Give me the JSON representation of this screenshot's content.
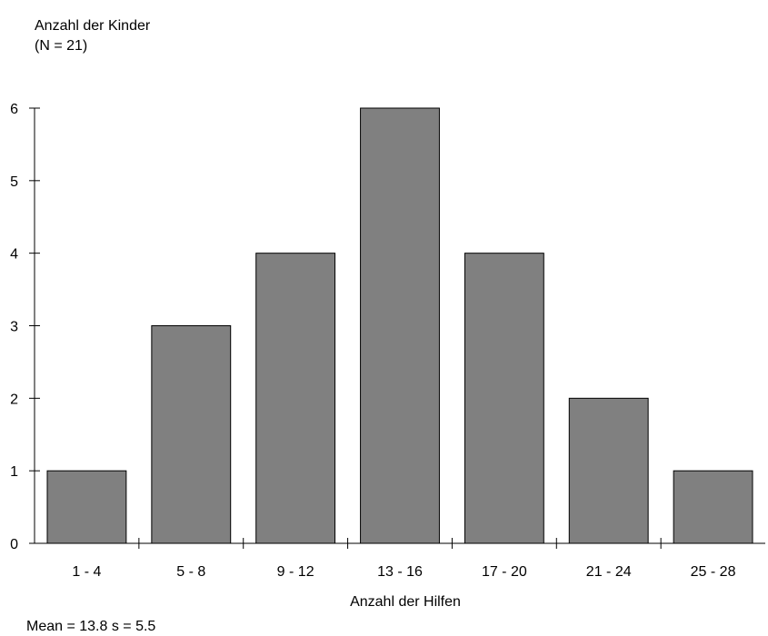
{
  "chart_data": {
    "type": "bar",
    "ylabel": [
      "Anzahl der Kinder",
      "(N = 21)"
    ],
    "xlabel": "Anzahl der Hilfen",
    "categories": [
      "1 - 4",
      "5 - 8",
      "9 - 12",
      "13 - 16",
      "17 - 20",
      "21 - 24",
      "25 - 28"
    ],
    "values": [
      1,
      3,
      4,
      6,
      4,
      2,
      1
    ],
    "ylim": [
      0,
      6
    ],
    "yticks": [
      0,
      1,
      2,
      3,
      4,
      5,
      6
    ],
    "grid": false,
    "bar_color": "#808080",
    "footer": "Mean = 13.8  s = 5.5"
  }
}
